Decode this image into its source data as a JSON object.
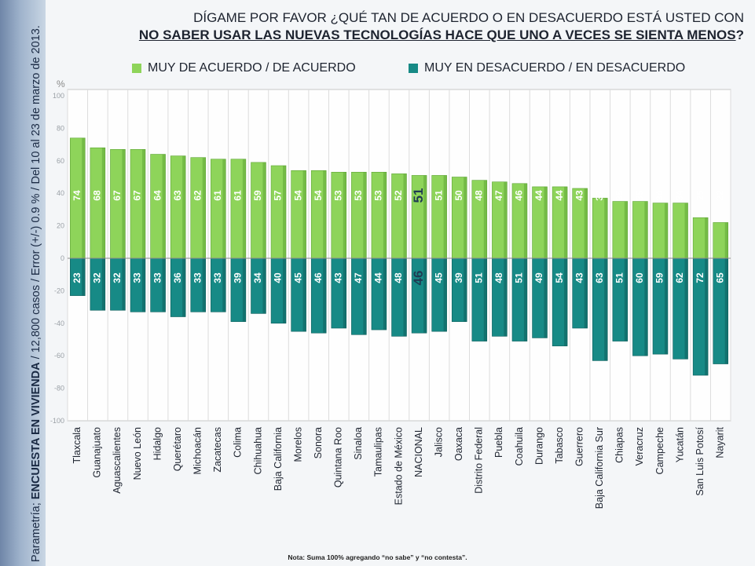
{
  "side_text": {
    "prefix": "Parametría; ",
    "bold": "ENCUESTA EN VIVIENDA",
    "rest": " / 12,800 casos / Error (+/-) 0.9 % / Del 10 al 23 de marzo de 2013."
  },
  "title": {
    "line1": "DÍGAME POR FAVOR ¿QUÉ TAN DE ACUERDO O EN DESACUERDO ESTÁ USTED CON",
    "line2": "NO SABER USAR LAS NUEVAS TECNOLOGÍAS HACE QUE UNO A VECES SE SIENTA MENOS",
    "line2_end": "?"
  },
  "note": "Nota: Suma 100% agregando “no sabe” y “no contesta”.",
  "colors": {
    "agree": "#8ed45a",
    "disagree": "#178a86",
    "highlight_text": "#1f3a52"
  },
  "chart_data": {
    "type": "bar",
    "ylabel": "%",
    "ylim": [
      -100,
      100
    ],
    "yticks": [
      100,
      80,
      60,
      40,
      20,
      0,
      -20,
      -40,
      -60,
      -80,
      -100
    ],
    "legend_position": "top",
    "highlight_category": "NACIONAL",
    "categories": [
      "Tlaxcala",
      "Guanajuato",
      "Aguascalientes",
      "Nuevo León",
      "Hidalgo",
      "Querétaro",
      "Michoacán",
      "Zacatecas",
      "Colima",
      "Chihuahua",
      "Baja California",
      "Morelos",
      "Sonora",
      "Quintana Roo",
      "Sinaloa",
      "Tamaulipas",
      "Estado de México",
      "NACIONAL",
      "Jalisco",
      "Oaxaca",
      "Distrito Federal",
      "Puebla",
      "Coahuila",
      "Durango",
      "Tabasco",
      "Guerrero",
      "Baja California Sur",
      "Chiapas",
      "Veracruz",
      "Campeche",
      "Yucatán",
      "San Luis Potosí",
      "Nayarit"
    ],
    "series": [
      {
        "name": "MUY DE ACUERDO / DE ACUERDO",
        "values": [
          74,
          68,
          67,
          67,
          64,
          63,
          62,
          61,
          61,
          59,
          57,
          54,
          54,
          53,
          53,
          53,
          52,
          51,
          51,
          50,
          48,
          47,
          46,
          44,
          44,
          43,
          37,
          35,
          35,
          34,
          34,
          25,
          22
        ]
      },
      {
        "name": "MUY EN DESACUERDO / EN DESACUERDO",
        "values": [
          23,
          32,
          32,
          33,
          33,
          36,
          33,
          33,
          39,
          34,
          40,
          45,
          46,
          43,
          47,
          44,
          48,
          46,
          45,
          39,
          51,
          48,
          51,
          49,
          54,
          43,
          63,
          51,
          60,
          59,
          62,
          72,
          65
        ]
      }
    ]
  }
}
